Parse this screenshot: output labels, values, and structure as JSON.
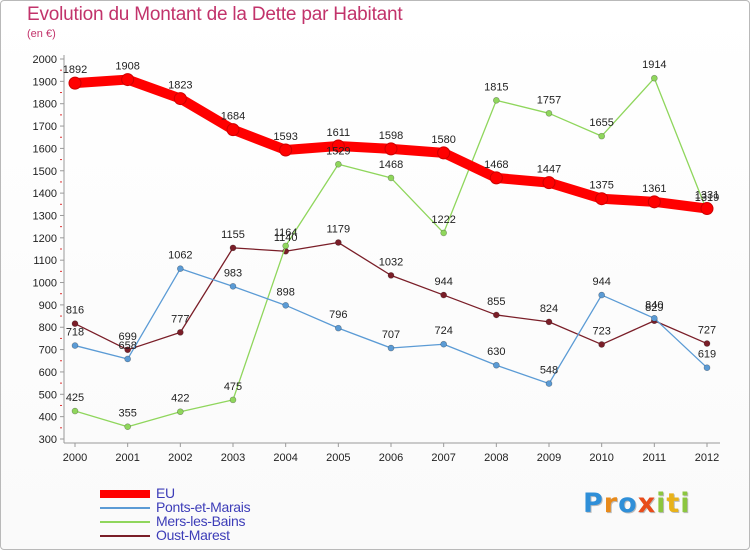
{
  "chart_data": {
    "type": "line",
    "title": "Evolution du Montant de la Dette par Habitant",
    "subtitle": "(en €)",
    "x": [
      "2000",
      "2001",
      "2002",
      "2003",
      "2004",
      "2005",
      "2006",
      "2007",
      "2008",
      "2009",
      "2010",
      "2011",
      "2012"
    ],
    "ylim": [
      300,
      2000
    ],
    "yticks": [
      300,
      400,
      500,
      600,
      700,
      800,
      900,
      1000,
      1100,
      1200,
      1300,
      1400,
      1500,
      1600,
      1700,
      1800,
      1900,
      2000
    ],
    "grid": false,
    "legend_position": "bottom-left",
    "series": [
      {
        "name": "EU",
        "color": "#ff0000",
        "values": [
          1892,
          1908,
          1823,
          1684,
          1593,
          1611,
          1598,
          1580,
          1468,
          1447,
          1375,
          1361,
          1331
        ]
      },
      {
        "name": "Ponts-et-Marais",
        "color": "#5b9bd5",
        "values": [
          718,
          658,
          1062,
          983,
          898,
          796,
          707,
          724,
          630,
          548,
          944,
          840,
          619
        ]
      },
      {
        "name": "Mers-les-Bains",
        "color": "#8fd65c",
        "values": [
          425,
          355,
          422,
          475,
          1164,
          1529,
          1468,
          1222,
          1815,
          1757,
          1655,
          1914,
          1319
        ]
      },
      {
        "name": "Oust-Marest",
        "color": "#7a1e28",
        "values": [
          816,
          699,
          777,
          1155,
          1140,
          1179,
          1032,
          944,
          855,
          824,
          723,
          829,
          727
        ]
      }
    ]
  },
  "brand": {
    "letters": [
      "P",
      "r",
      "o",
      "x",
      "i",
      "t",
      "i"
    ],
    "colors": [
      "#2f8fd8",
      "#e88a1a",
      "#2f8fd8",
      "#e84c1a",
      "#8cc63f",
      "#e8b21a",
      "#8cc63f"
    ]
  }
}
